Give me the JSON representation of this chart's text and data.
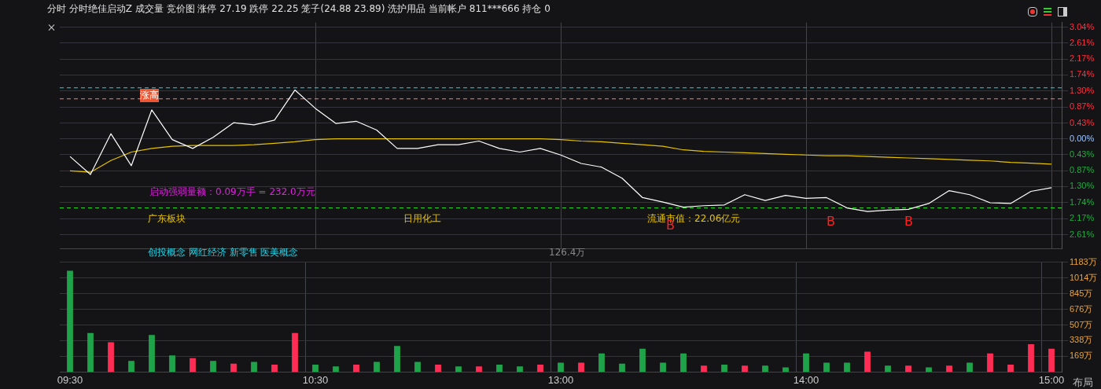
{
  "chart_data": [
    {
      "type": "line",
      "title": "分时 分时绝佳启动Z 成交量 竞价图 涨停 27.19 跌停 22.25 笼子(24.88 23.89) 洗护用品 当前帐户 811***666 持仓 0",
      "categories": [
        null,
        null,
        null,
        null,
        null,
        null,
        null,
        null,
        null,
        null,
        null,
        null,
        null,
        null,
        null,
        null,
        null,
        null,
        null,
        null,
        null,
        null,
        null,
        null,
        null,
        null,
        null,
        null,
        null,
        null,
        null,
        null,
        null,
        null,
        null,
        null,
        null,
        null,
        null,
        null,
        null,
        null,
        null,
        null,
        null,
        null,
        null,
        null,
        null
      ],
      "series": [
        {
          "color": "#ffffff",
          "values": [
            -0.48,
            -0.97,
            0.14,
            -0.73,
            0.79,
            -0.02,
            -0.26,
            0.04,
            0.44,
            0.38,
            0.51,
            1.33,
            0.83,
            0.42,
            0.48,
            0.24,
            -0.26,
            -0.26,
            -0.16,
            -0.16,
            -0.06,
            -0.26,
            -0.36,
            -0.26,
            -0.44,
            -0.67,
            -0.77,
            -1.07,
            -1.6,
            -1.72,
            -1.86,
            -1.82,
            -1.8,
            -1.52,
            -1.68,
            -1.54,
            -1.62,
            -1.6,
            -1.88,
            -1.98,
            -1.94,
            -1.92,
            -1.76,
            -1.41,
            -1.52,
            -1.74,
            -1.76,
            -1.43,
            -1.33
          ]
        },
        {
          "color": "#e6c200",
          "values": [
            -0.87,
            -0.91,
            -0.59,
            -0.36,
            -0.26,
            -0.2,
            -0.18,
            -0.18,
            -0.18,
            -0.16,
            -0.12,
            -0.08,
            -0.02,
            0,
            0,
            0,
            0,
            0,
            0,
            0,
            0,
            0,
            0,
            0,
            -0.02,
            -0.06,
            -0.08,
            -0.12,
            -0.16,
            -0.2,
            -0.3,
            -0.34,
            -0.36,
            -0.38,
            -0.4,
            -0.42,
            -0.44,
            -0.46,
            -0.46,
            -0.48,
            -0.5,
            -0.52,
            -0.54,
            -0.56,
            -0.58,
            -0.6,
            -0.64,
            -0.66,
            -0.69
          ]
        }
      ],
      "ylim": [
        -2.99,
        3.17
      ],
      "yticks": [
        {
          "value": 3.04,
          "label": "3.04%"
        },
        {
          "value": 2.61,
          "label": "2.61%"
        },
        {
          "value": 2.17,
          "label": "2.17%"
        },
        {
          "value": 1.74,
          "label": "1.74%"
        },
        {
          "value": 1.3,
          "label": "1.30%"
        },
        {
          "value": 0.87,
          "label": "0.87%"
        },
        {
          "value": 0.43,
          "label": "0.43%"
        },
        {
          "value": 0,
          "label": "0.00%"
        },
        {
          "value": -0.43,
          "label": "0.43%"
        },
        {
          "value": -0.87,
          "label": "0.87%"
        },
        {
          "value": -1.3,
          "label": "1.30%"
        },
        {
          "value": -1.74,
          "label": "1.74%"
        },
        {
          "value": -2.17,
          "label": "2.17%"
        },
        {
          "value": -2.61,
          "label": "2.61%"
        }
      ],
      "grid": true,
      "legend": false,
      "tick_labels": "y",
      "marker": "none",
      "line_style": "solid",
      "ref_lines": [
        {
          "axis": "y",
          "value": 1.39,
          "color": "#22d3e6",
          "line_style": "dashed"
        },
        {
          "axis": "y",
          "value": 1.09,
          "color": "#f08080",
          "line_style": "dashed"
        },
        {
          "axis": "y",
          "value": -1.88,
          "color": "#22dd22",
          "line_style": "dashed"
        }
      ],
      "annotations": [
        "涨高",
        "启动强弱量额：0.09万手 = 232.0万元",
        "广东板块",
        "日用化工",
        "流通市值：22.06亿元",
        "创投概念 网红经济 新零售 医美概念",
        "126.4万",
        "B",
        "B",
        "B"
      ]
    },
    {
      "type": "bar",
      "categories": [
        "09:30",
        null,
        null,
        null,
        null,
        null,
        null,
        null,
        null,
        null,
        null,
        null,
        "10:30",
        null,
        null,
        null,
        null,
        null,
        null,
        null,
        null,
        null,
        null,
        null,
        "13:00",
        null,
        null,
        null,
        null,
        null,
        null,
        null,
        null,
        null,
        null,
        null,
        "14:00",
        null,
        null,
        null,
        null,
        null,
        null,
        null,
        null,
        null,
        null,
        null,
        "15:00"
      ],
      "values": [
        1090,
        420,
        320,
        120,
        400,
        180,
        150,
        120,
        90,
        110,
        80,
        420,
        80,
        60,
        80,
        110,
        280,
        110,
        80,
        60,
        60,
        80,
        60,
        80,
        100,
        100,
        200,
        90,
        250,
        100,
        200,
        70,
        80,
        70,
        70,
        50,
        200,
        100,
        100,
        220,
        70,
        70,
        50,
        70,
        100,
        200,
        80,
        300,
        250
      ],
      "colors": [
        "#1fa34a",
        "#1fa34a",
        "#ff2d55",
        "#1fa34a",
        "#1fa34a",
        "#1fa34a",
        "#ff2d55",
        "#1fa34a",
        "#ff2d55",
        "#1fa34a",
        "#ff2d55",
        "#ff2d55",
        "#1fa34a",
        "#1fa34a",
        "#ff2d55",
        "#1fa34a",
        "#1fa34a",
        "#1fa34a",
        "#ff2d55",
        "#1fa34a",
        "#ff2d55",
        "#1fa34a",
        "#1fa34a",
        "#ff2d55",
        "#1fa34a",
        "#ff2d55",
        "#1fa34a",
        "#1fa34a",
        "#1fa34a",
        "#1fa34a",
        "#1fa34a",
        "#ff2d55",
        "#1fa34a",
        "#ff2d55",
        "#1fa34a",
        "#1fa34a",
        "#1fa34a",
        "#1fa34a",
        "#1fa34a",
        "#ff2d55",
        "#1fa34a",
        "#ff2d55",
        "#1fa34a",
        "#ff2d55",
        "#1fa34a",
        "#ff2d55",
        "#ff2d55",
        "#ff2d55",
        "#ff2d55"
      ],
      "ylim": [
        0,
        1183
      ],
      "yticks": [
        {
          "value": 169,
          "label": "169万"
        },
        {
          "value": 338,
          "label": "338万"
        },
        {
          "value": 507,
          "label": "507万"
        },
        {
          "value": 676,
          "label": "676万"
        },
        {
          "value": 845,
          "label": "845万"
        },
        {
          "value": 1014,
          "label": "1014万"
        },
        {
          "value": 1183,
          "label": "1183万"
        }
      ],
      "grid": true,
      "legend": false,
      "annotations": [
        "布局"
      ]
    }
  ]
}
